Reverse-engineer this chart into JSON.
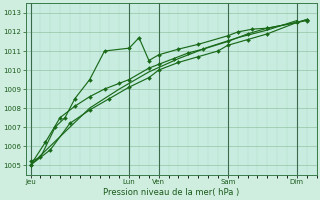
{
  "xlabel": "Pression niveau de la mer( hPa )",
  "bg_color": "#d0eee0",
  "plot_bg_color": "#c8ece0",
  "line_color": "#1a6a1a",
  "grid_major_color": "#88bb99",
  "grid_minor_color": "#aaddbb",
  "ylim": [
    1004.5,
    1013.5
  ],
  "yticks": [
    1005,
    1006,
    1007,
    1008,
    1009,
    1010,
    1011,
    1012,
    1013
  ],
  "xtick_labels": [
    "Jeu",
    "Lun",
    "Ven",
    "Sam",
    "Dim"
  ],
  "xtick_positions": [
    0,
    40,
    52,
    80,
    108
  ],
  "xlim": [
    -2,
    116
  ],
  "vline_positions": [
    0,
    40,
    52,
    80,
    108
  ],
  "series": [
    {
      "x": [
        0,
        4,
        10,
        14,
        18,
        24,
        30,
        40,
        44,
        48,
        52,
        60,
        68,
        80,
        84,
        90,
        96,
        108,
        112
      ],
      "y": [
        1005.2,
        1005.4,
        1007.0,
        1007.5,
        1008.5,
        1009.5,
        1011.0,
        1011.15,
        1011.7,
        1010.5,
        1010.8,
        1011.1,
        1011.35,
        1011.8,
        1012.0,
        1012.15,
        1012.2,
        1012.5,
        1012.6
      ],
      "marker": true
    },
    {
      "x": [
        0,
        6,
        12,
        18,
        24,
        30,
        36,
        40,
        48,
        52,
        58,
        64,
        70,
        80,
        88,
        96,
        108,
        112
      ],
      "y": [
        1005.0,
        1006.2,
        1007.5,
        1008.1,
        1008.6,
        1009.0,
        1009.3,
        1009.5,
        1010.1,
        1010.3,
        1010.6,
        1010.9,
        1011.1,
        1011.5,
        1011.9,
        1012.2,
        1012.5,
        1012.65
      ],
      "marker": true
    },
    {
      "x": [
        0,
        8,
        16,
        24,
        32,
        40,
        48,
        52,
        60,
        68,
        76,
        80,
        88,
        96,
        108,
        112
      ],
      "y": [
        1005.0,
        1005.8,
        1007.2,
        1007.9,
        1008.5,
        1009.1,
        1009.6,
        1010.0,
        1010.4,
        1010.7,
        1011.0,
        1011.3,
        1011.6,
        1011.9,
        1012.5,
        1012.65
      ],
      "marker": true
    },
    {
      "x": [
        0,
        12,
        24,
        36,
        48,
        60,
        72,
        84,
        96,
        108
      ],
      "y": [
        1005.0,
        1006.5,
        1008.0,
        1009.0,
        1009.9,
        1010.6,
        1011.2,
        1011.7,
        1012.1,
        1012.6
      ],
      "marker": false
    }
  ]
}
